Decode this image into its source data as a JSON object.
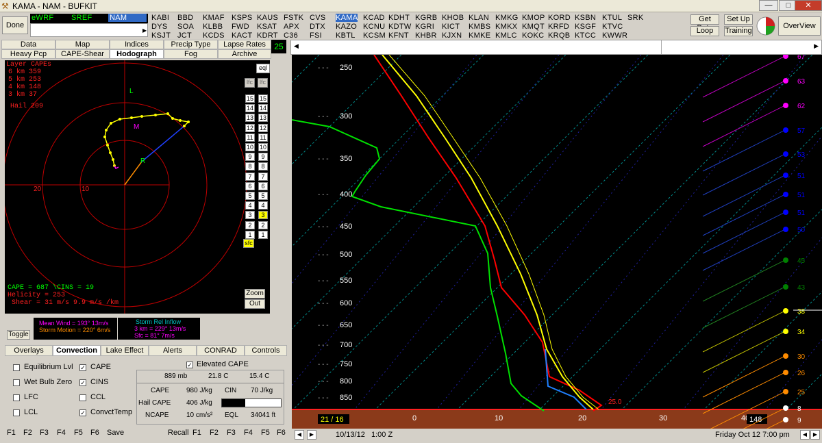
{
  "window": {
    "title": "KAMA - NAM - BUFKIT"
  },
  "toolbar": {
    "done": "Done",
    "get_data": "Get Data",
    "loop": "Loop",
    "setup": "Set Up",
    "training": "Training",
    "overview": "OverView"
  },
  "models": {
    "ewrf": "eWRF",
    "sref": "SREF",
    "nam": "NAM"
  },
  "stations": {
    "row1": [
      "KABI",
      "BBD",
      "KMAF",
      "KSPS",
      "KAUS",
      "FSTK",
      "CVS",
      "KAMA",
      "KCAD",
      "KDHT",
      "KGRB",
      "KHOB",
      "KLAN",
      "KMKG",
      "KMOP",
      "KORD",
      "KSBN",
      "KTUL",
      "SRK"
    ],
    "row2": [
      "DYS",
      "SOA",
      "KLBB",
      "FWD",
      "KSAT",
      "APX",
      "DTX",
      "KAZO",
      "KCNU",
      "KDTW",
      "KGRI",
      "KICT",
      "KMBS",
      "KMKX",
      "KMQT",
      "KRFD",
      "KSGF",
      "KTVC"
    ],
    "row3": [
      "KSJT",
      "JCT",
      "KCDS",
      "KACT",
      "KDRT",
      "C36",
      "FSI",
      "KBTL",
      "KCSM",
      "KFNT",
      "KHBR",
      "KJXN",
      "KMKE",
      "KMLC",
      "KOKC",
      "KRQB",
      "KTCC",
      "KWWR"
    ]
  },
  "view_tabs": {
    "row1": [
      "Data",
      "Map",
      "Indices",
      "Precip Type",
      "Lapse Rates"
    ],
    "row2": [
      "Heavy Pcp",
      "CAPE-Shear",
      "Hodograph",
      "Fog",
      "Archive"
    ],
    "counter": "25"
  },
  "hodograph": {
    "title": "Layer CAPEs",
    "capes": [
      "6 km  359",
      "5 km  253",
      "4 km  148",
      "3 km  37"
    ],
    "hail": "Hail  209",
    "ring_labels": [
      "20",
      "10"
    ],
    "markers": {
      "L": "L",
      "M": "M",
      "R": "R"
    },
    "cape_line": "CAPE =  687 \\CINS =  19",
    "helicity": "Helicity =  253",
    "shear": "Shear =  31 m/s    9.9 m/s /km",
    "zoom": "Zoom",
    "out": "Out",
    "eql": "eql",
    "lfc": "lfc",
    "levels": [
      "15",
      "14",
      "13",
      "12",
      "11",
      "10",
      "9",
      "8",
      "7",
      "6",
      "5",
      "4",
      "3",
      "2",
      "1"
    ],
    "sfc": "sfc"
  },
  "wind_info": {
    "toggle": "Toggle",
    "mean_wind": "Mean Wind = 193° 13m/s",
    "storm_motion": "Storm Motion = 220° 6m/s",
    "sri_title": "Storm Rel Inflow",
    "sri_3km": "3 km = 229° 13m/s",
    "sri_sfc": "Sfc = 81° 7m/s"
  },
  "bottom_tabs": [
    "Overlays",
    "Convection",
    "Lake Effect",
    "Alerts",
    "CONRAD",
    "Controls"
  ],
  "options": {
    "left": [
      {
        "label": "Equilibrium Lvl",
        "checked": false
      },
      {
        "label": "Wet Bulb Zero",
        "checked": false
      },
      {
        "label": "LFC",
        "checked": false
      },
      {
        "label": "LCL",
        "checked": false
      }
    ],
    "right": [
      {
        "label": "CAPE",
        "checked": true
      },
      {
        "label": "CINS",
        "checked": true
      },
      {
        "label": "CCL",
        "checked": false
      },
      {
        "label": "ConvctTemp",
        "checked": true
      }
    ],
    "elevated": {
      "label": "Elevated CAPE",
      "checked": true
    }
  },
  "parcel": {
    "header": [
      "889 mb",
      "21.8 C",
      "15.4 C"
    ],
    "cape": "CAPE",
    "cape_val": "980 J/kg",
    "cin": "CIN",
    "cin_val": "70 J/kg",
    "hail_cape": "Hail CAPE",
    "hail_cape_val": "406 J/kg",
    "ncape": "NCAPE",
    "ncape_val": "10 cm/s²",
    "eql": "EQL",
    "eql_val": "34041 ft"
  },
  "fkeys_left": [
    "F1",
    "F2",
    "F3",
    "F4",
    "F5",
    "F6",
    "Save"
  ],
  "fkeys_right": [
    "Recall",
    "F1",
    "F2",
    "F3",
    "F4",
    "F5",
    "F6"
  ],
  "skewt": {
    "pressure_labels": [
      "250",
      "300",
      "350",
      "400",
      "450",
      "500",
      "550",
      "600",
      "650",
      "700",
      "750",
      "800",
      "850"
    ],
    "temp_labels": [
      "0",
      "10",
      "20",
      "30",
      "40"
    ],
    "left_readout": "21 / 16",
    "right_readout": "148",
    "right_readout2": "9",
    "sfc_temp": "25.0",
    "wind_speeds": [
      "63",
      "62",
      "57",
      "53",
      "51",
      "51",
      "51",
      "50",
      "45",
      "43",
      "38",
      "34",
      "30",
      "26",
      "25",
      "8",
      "9"
    ],
    "top_partial": "67"
  },
  "status": {
    "date": "10/13/12",
    "time": "1:00 Z",
    "local": "Friday   Oct 12  7:00 pm"
  },
  "colors": {
    "temp": "#ff0000",
    "dewpt": "#00ff00",
    "parcel": "#ffff00",
    "wetbulb": "#0060ff",
    "accent": "#3a6fd0"
  }
}
